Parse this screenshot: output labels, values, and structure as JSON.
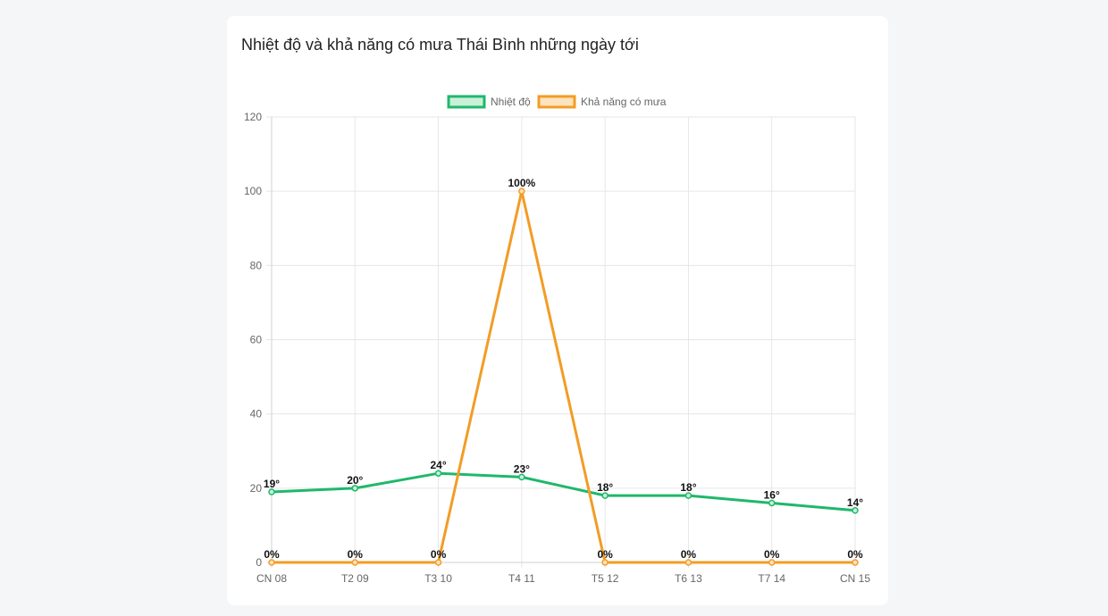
{
  "page": {
    "title": "Nhiệt độ và khả năng có mưa Thái Bình những ngày tới"
  },
  "chart_data": {
    "type": "line",
    "title": "",
    "xlabel": "",
    "ylabel": "",
    "categories": [
      "CN 08",
      "T2 09",
      "T3 10",
      "T4 11",
      "T5 12",
      "T6 13",
      "T7 14",
      "CN 15"
    ],
    "ylim": [
      0,
      120
    ],
    "yticks": [
      0,
      20,
      40,
      60,
      80,
      100,
      120
    ],
    "grid": true,
    "legend_position": "top-center",
    "series": [
      {
        "name": "Nhiệt độ",
        "values": [
          19,
          20,
          24,
          23,
          18,
          18,
          16,
          14
        ],
        "labels": [
          "19°",
          "20°",
          "24°",
          "23°",
          "18°",
          "18°",
          "16°",
          "14°"
        ],
        "color": "#1fb86b",
        "fill": "#c9f0d9"
      },
      {
        "name": "Khả năng có mưa",
        "values": [
          0,
          0,
          0,
          100,
          0,
          0,
          0,
          0
        ],
        "labels": [
          "0%",
          "0%",
          "0%",
          "100%",
          "0%",
          "0%",
          "0%",
          "0%"
        ],
        "color": "#f39c25",
        "fill": "#fde3bf"
      }
    ]
  }
}
